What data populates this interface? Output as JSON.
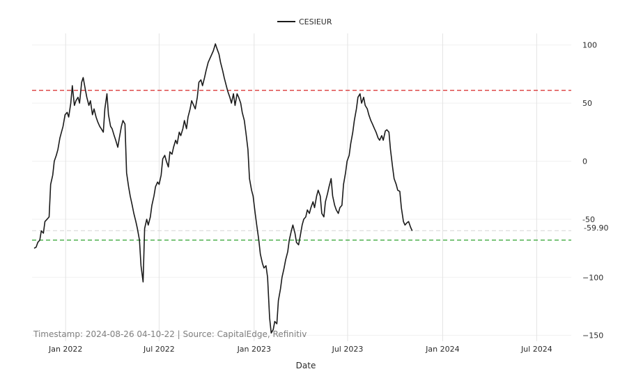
{
  "chart_data": {
    "type": "line",
    "xlabel": "Date",
    "ylim": [
      -155,
      110
    ],
    "x_range": [
      "2021-10-28",
      "2024-09-06"
    ],
    "grid": true,
    "legend_position": "top-center",
    "y_ticks": [
      100,
      50,
      0,
      -50,
      -100,
      -150
    ],
    "y_tick_labels": [
      "100",
      "50",
      "0",
      "-50",
      "−100",
      "−150"
    ],
    "x_ticks": [
      {
        "date": "2022-01-01",
        "label": "Jan 2022"
      },
      {
        "date": "2022-07-01",
        "label": "Jul 2022"
      },
      {
        "date": "2023-01-01",
        "label": "Jan 2023"
      },
      {
        "date": "2023-07-01",
        "label": "Jul 2023"
      },
      {
        "date": "2024-01-01",
        "label": "Jan 2024"
      },
      {
        "date": "2024-07-01",
        "label": "Jul 2024"
      }
    ],
    "reference_lines": [
      {
        "y": 61,
        "color": "#d62728",
        "style": "dashed"
      },
      {
        "y": -59.9,
        "color": "#dddddd",
        "style": "dashed"
      },
      {
        "y": -68,
        "color": "#2ca02c",
        "style": "dashed"
      }
    ],
    "last_value_label": "-59.90",
    "annotation": "Timestamp: 2024-08-26 04-10-22 | Source: CapitalEdge, Refinitiv",
    "series": [
      {
        "name": "CESIEUR",
        "color": "#1a1a1a",
        "points": [
          [
            "2021-11-01",
            -75
          ],
          [
            "2021-11-05",
            -74
          ],
          [
            "2021-11-08",
            -70
          ],
          [
            "2021-11-12",
            -68
          ],
          [
            "2021-11-15",
            -60
          ],
          [
            "2021-11-19",
            -62
          ],
          [
            "2021-11-22",
            -52
          ],
          [
            "2021-11-26",
            -50
          ],
          [
            "2021-11-30",
            -48
          ],
          [
            "2021-12-03",
            -20
          ],
          [
            "2021-12-07",
            -12
          ],
          [
            "2021-12-10",
            0
          ],
          [
            "2021-12-14",
            5
          ],
          [
            "2021-12-17",
            10
          ],
          [
            "2021-12-21",
            20
          ],
          [
            "2021-12-27",
            30
          ],
          [
            "2021-12-31",
            40
          ],
          [
            "2022-01-04",
            42
          ],
          [
            "2022-01-07",
            38
          ],
          [
            "2022-01-11",
            50
          ],
          [
            "2022-01-14",
            65
          ],
          [
            "2022-01-18",
            48
          ],
          [
            "2022-01-21",
            52
          ],
          [
            "2022-01-25",
            55
          ],
          [
            "2022-01-28",
            50
          ],
          [
            "2022-02-01",
            68
          ],
          [
            "2022-02-04",
            72
          ],
          [
            "2022-02-08",
            62
          ],
          [
            "2022-02-11",
            55
          ],
          [
            "2022-02-15",
            48
          ],
          [
            "2022-02-18",
            52
          ],
          [
            "2022-02-22",
            40
          ],
          [
            "2022-02-25",
            45
          ],
          [
            "2022-03-01",
            38
          ],
          [
            "2022-03-04",
            34
          ],
          [
            "2022-03-08",
            30
          ],
          [
            "2022-03-11",
            28
          ],
          [
            "2022-03-15",
            25
          ],
          [
            "2022-03-18",
            45
          ],
          [
            "2022-03-22",
            58
          ],
          [
            "2022-03-25",
            40
          ],
          [
            "2022-03-29",
            30
          ],
          [
            "2022-04-01",
            28
          ],
          [
            "2022-04-05",
            22
          ],
          [
            "2022-04-08",
            18
          ],
          [
            "2022-04-12",
            12
          ],
          [
            "2022-04-15",
            20
          ],
          [
            "2022-04-19",
            30
          ],
          [
            "2022-04-22",
            35
          ],
          [
            "2022-04-26",
            32
          ],
          [
            "2022-04-29",
            -10
          ],
          [
            "2022-05-03",
            -22
          ],
          [
            "2022-05-06",
            -30
          ],
          [
            "2022-05-10",
            -38
          ],
          [
            "2022-05-13",
            -45
          ],
          [
            "2022-05-17",
            -52
          ],
          [
            "2022-05-20",
            -58
          ],
          [
            "2022-05-24",
            -68
          ],
          [
            "2022-05-27",
            -90
          ],
          [
            "2022-05-31",
            -104
          ],
          [
            "2022-06-03",
            -58
          ],
          [
            "2022-06-07",
            -50
          ],
          [
            "2022-06-10",
            -55
          ],
          [
            "2022-06-14",
            -48
          ],
          [
            "2022-06-17",
            -38
          ],
          [
            "2022-06-21",
            -30
          ],
          [
            "2022-06-24",
            -22
          ],
          [
            "2022-06-28",
            -18
          ],
          [
            "2022-07-01",
            -20
          ],
          [
            "2022-07-05",
            -12
          ],
          [
            "2022-07-08",
            2
          ],
          [
            "2022-07-12",
            5
          ],
          [
            "2022-07-15",
            0
          ],
          [
            "2022-07-19",
            -5
          ],
          [
            "2022-07-22",
            8
          ],
          [
            "2022-07-26",
            6
          ],
          [
            "2022-07-29",
            12
          ],
          [
            "2022-08-02",
            18
          ],
          [
            "2022-08-05",
            15
          ],
          [
            "2022-08-09",
            25
          ],
          [
            "2022-08-12",
            22
          ],
          [
            "2022-08-16",
            28
          ],
          [
            "2022-08-19",
            35
          ],
          [
            "2022-08-23",
            28
          ],
          [
            "2022-08-26",
            38
          ],
          [
            "2022-08-30",
            45
          ],
          [
            "2022-09-02",
            52
          ],
          [
            "2022-09-06",
            48
          ],
          [
            "2022-09-09",
            45
          ],
          [
            "2022-09-13",
            55
          ],
          [
            "2022-09-16",
            68
          ],
          [
            "2022-09-20",
            70
          ],
          [
            "2022-09-23",
            65
          ],
          [
            "2022-09-27",
            72
          ],
          [
            "2022-09-30",
            78
          ],
          [
            "2022-10-04",
            85
          ],
          [
            "2022-10-07",
            88
          ],
          [
            "2022-10-11",
            92
          ],
          [
            "2022-10-14",
            95
          ],
          [
            "2022-10-18",
            101
          ],
          [
            "2022-10-21",
            97
          ],
          [
            "2022-10-25",
            92
          ],
          [
            "2022-10-28",
            85
          ],
          [
            "2022-11-01",
            78
          ],
          [
            "2022-11-04",
            72
          ],
          [
            "2022-11-08",
            65
          ],
          [
            "2022-11-11",
            60
          ],
          [
            "2022-11-15",
            55
          ],
          [
            "2022-11-18",
            50
          ],
          [
            "2022-11-22",
            58
          ],
          [
            "2022-11-25",
            48
          ],
          [
            "2022-11-29",
            58
          ],
          [
            "2022-12-02",
            55
          ],
          [
            "2022-12-06",
            50
          ],
          [
            "2022-12-09",
            42
          ],
          [
            "2022-12-13",
            35
          ],
          [
            "2022-12-16",
            25
          ],
          [
            "2022-12-20",
            10
          ],
          [
            "2022-12-23",
            -15
          ],
          [
            "2022-12-27",
            -25
          ],
          [
            "2022-12-30",
            -30
          ],
          [
            "2023-01-03",
            -45
          ],
          [
            "2023-01-06",
            -55
          ],
          [
            "2023-01-10",
            -68
          ],
          [
            "2023-01-13",
            -80
          ],
          [
            "2023-01-17",
            -88
          ],
          [
            "2023-01-20",
            -92
          ],
          [
            "2023-01-24",
            -90
          ],
          [
            "2023-01-27",
            -100
          ],
          [
            "2023-01-31",
            -135
          ],
          [
            "2023-02-03",
            -148
          ],
          [
            "2023-02-07",
            -145
          ],
          [
            "2023-02-10",
            -138
          ],
          [
            "2023-02-14",
            -140
          ],
          [
            "2023-02-17",
            -120
          ],
          [
            "2023-02-21",
            -110
          ],
          [
            "2023-02-24",
            -100
          ],
          [
            "2023-02-28",
            -92
          ],
          [
            "2023-03-03",
            -85
          ],
          [
            "2023-03-07",
            -78
          ],
          [
            "2023-03-10",
            -68
          ],
          [
            "2023-03-14",
            -60
          ],
          [
            "2023-03-17",
            -55
          ],
          [
            "2023-03-21",
            -62
          ],
          [
            "2023-03-24",
            -70
          ],
          [
            "2023-03-28",
            -72
          ],
          [
            "2023-03-31",
            -65
          ],
          [
            "2023-04-04",
            -55
          ],
          [
            "2023-04-07",
            -50
          ],
          [
            "2023-04-11",
            -48
          ],
          [
            "2023-04-14",
            -42
          ],
          [
            "2023-04-18",
            -45
          ],
          [
            "2023-04-21",
            -40
          ],
          [
            "2023-04-25",
            -35
          ],
          [
            "2023-04-28",
            -40
          ],
          [
            "2023-05-02",
            -30
          ],
          [
            "2023-05-05",
            -25
          ],
          [
            "2023-05-09",
            -30
          ],
          [
            "2023-05-12",
            -45
          ],
          [
            "2023-05-16",
            -48
          ],
          [
            "2023-05-19",
            -35
          ],
          [
            "2023-05-23",
            -28
          ],
          [
            "2023-05-26",
            -22
          ],
          [
            "2023-05-30",
            -15
          ],
          [
            "2023-06-02",
            -30
          ],
          [
            "2023-06-06",
            -38
          ],
          [
            "2023-06-09",
            -42
          ],
          [
            "2023-06-13",
            -45
          ],
          [
            "2023-06-16",
            -40
          ],
          [
            "2023-06-20",
            -38
          ],
          [
            "2023-06-23",
            -20
          ],
          [
            "2023-06-27",
            -10
          ],
          [
            "2023-06-30",
            0
          ],
          [
            "2023-07-04",
            5
          ],
          [
            "2023-07-07",
            15
          ],
          [
            "2023-07-11",
            25
          ],
          [
            "2023-07-14",
            35
          ],
          [
            "2023-07-18",
            45
          ],
          [
            "2023-07-21",
            55
          ],
          [
            "2023-07-25",
            58
          ],
          [
            "2023-07-28",
            50
          ],
          [
            "2023-08-01",
            55
          ],
          [
            "2023-08-04",
            48
          ],
          [
            "2023-08-08",
            45
          ],
          [
            "2023-08-11",
            40
          ],
          [
            "2023-08-15",
            35
          ],
          [
            "2023-08-18",
            32
          ],
          [
            "2023-08-22",
            28
          ],
          [
            "2023-08-25",
            25
          ],
          [
            "2023-08-29",
            20
          ],
          [
            "2023-09-01",
            18
          ],
          [
            "2023-09-05",
            22
          ],
          [
            "2023-09-08",
            18
          ],
          [
            "2023-09-12",
            26
          ],
          [
            "2023-09-15",
            27
          ],
          [
            "2023-09-19",
            25
          ],
          [
            "2023-09-22",
            10
          ],
          [
            "2023-09-26",
            -5
          ],
          [
            "2023-09-29",
            -15
          ],
          [
            "2023-10-03",
            -20
          ],
          [
            "2023-10-06",
            -25
          ],
          [
            "2023-10-10",
            -26
          ],
          [
            "2023-10-13",
            -40
          ],
          [
            "2023-10-17",
            -52
          ],
          [
            "2023-10-20",
            -55
          ],
          [
            "2023-10-24",
            -53
          ],
          [
            "2023-10-27",
            -52
          ],
          [
            "2023-10-31",
            -57
          ],
          [
            "2023-11-03",
            -60
          ]
        ]
      }
    ]
  }
}
